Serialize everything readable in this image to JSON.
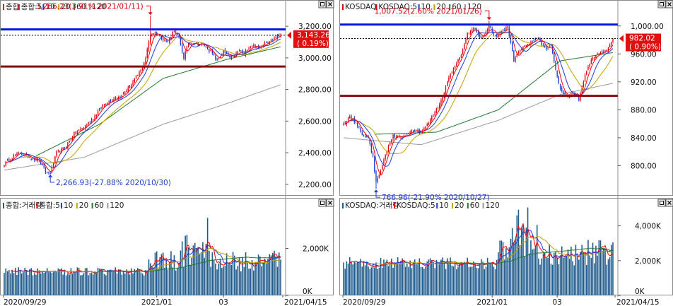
{
  "colors": {
    "candle_up": "#e0000e",
    "candle_down": "#1c3dd8",
    "ma5": "#ff0000",
    "ma10": "#1c3dd8",
    "ma20": "#c8a000",
    "ma60": "#1f7a2e",
    "ma120": "#9a9a9a",
    "hline_blue": "#0a16e8",
    "hline_red": "#8a0a0a",
    "volume_bar": "#1f5b8c",
    "price_tag": "#e01010",
    "axis_text": "#111111"
  },
  "panels": [
    {
      "id": "kospi",
      "price_legend": [
        {
          "text": "종합",
          "color": "#e0000e"
        },
        {
          "text": "종합:5",
          "color": "#e0000e"
        },
        {
          "text": "10",
          "color": "#1c3dd8"
        },
        {
          "text": "20",
          "color": "#c8a000"
        },
        {
          "text": "60",
          "color": "#1f7a2e"
        },
        {
          "text": "120",
          "color": "#9a9a9a"
        }
      ],
      "volume_legend": [
        {
          "text": "종합:거래량",
          "color": "#1f5b8c"
        },
        {
          "text": "종합:5",
          "color": "#e0000e"
        },
        {
          "text": "10",
          "color": "#1c3dd8"
        },
        {
          "text": "20",
          "color": "#c8a000"
        },
        {
          "text": "60",
          "color": "#1f7a2e"
        },
        {
          "text": "120",
          "color": "#9a9a9a"
        }
      ],
      "high_annotation": "3,266.23(3.91% 2021/01/11)",
      "low_annotation": "2,266.93(-27.88% 2020/10/30)",
      "current_price": "3,143.26",
      "current_change": "( 0.19%)",
      "price_ticks": [
        "3,200.00",
        "3,000.00",
        "2,800.00",
        "2,600.00",
        "2,400.00",
        "2,200.00"
      ],
      "volume_ticks": [
        "2,000K",
        "0K"
      ],
      "date_ticks": [
        "2020/09/29",
        "2021/01",
        "03",
        "2021/04/15"
      ]
    },
    {
      "id": "kosdaq",
      "price_legend": [
        {
          "text": "KOSDAQ",
          "color": "#e0000e"
        },
        {
          "text": "KOSDAQ:5",
          "color": "#e0000e"
        },
        {
          "text": "10",
          "color": "#1c3dd8"
        },
        {
          "text": "20",
          "color": "#c8a000"
        },
        {
          "text": "60",
          "color": "#1f7a2e"
        },
        {
          "text": "120",
          "color": "#9a9a9a"
        }
      ],
      "volume_legend": [
        {
          "text": "KOSDAQ:거래량",
          "color": "#1f5b8c"
        },
        {
          "text": "KOSDAQ:5",
          "color": "#e0000e"
        },
        {
          "text": "10",
          "color": "#1c3dd8"
        },
        {
          "text": "20",
          "color": "#c8a000"
        },
        {
          "text": "60",
          "color": "#1f7a2e"
        },
        {
          "text": "120",
          "color": "#9a9a9a"
        }
      ],
      "high_annotation": "1,007.52(2.60% 2021/01/26)",
      "low_annotation": "766.96(-21.90% 2020/10/27)",
      "current_price": "982.02",
      "current_change": "( 0.90%)",
      "price_ticks": [
        "1,000.00",
        "960.00",
        "920.00",
        "880.00",
        "840.00",
        "800.00"
      ],
      "volume_ticks": [
        "4,000K",
        "2,000K",
        "0K"
      ],
      "date_ticks": [
        "2020/09/29",
        "2021/01",
        "03",
        "2021/04/15"
      ]
    }
  ],
  "chart_data": [
    {
      "type": "candlestick",
      "title": "종합",
      "x_range": [
        "2020/09/29",
        "2021/04/15"
      ],
      "ylim": [
        2150,
        3290
      ],
      "y_ticks": [
        3200,
        3000,
        2800,
        2600,
        2400,
        2200
      ],
      "high": {
        "value": 3266.23,
        "change_pct": 3.91,
        "date": "2021/01/11"
      },
      "low": {
        "value": 2266.93,
        "change_pct": -27.88,
        "date": "2020/10/30"
      },
      "last": {
        "value": 3143.26,
        "change_pct": 0.19
      },
      "horizontal_lines": [
        {
          "color": "blue",
          "value": 3180
        },
        {
          "color": "darkred",
          "value": 2945
        }
      ],
      "dashed_line_value": 3143.26,
      "close_anchors": [
        [
          0,
          2330
        ],
        [
          6,
          2380
        ],
        [
          10,
          2400
        ],
        [
          16,
          2370
        ],
        [
          22,
          2350
        ],
        [
          26,
          2280
        ],
        [
          29,
          2270
        ],
        [
          33,
          2400
        ],
        [
          38,
          2430
        ],
        [
          44,
          2520
        ],
        [
          50,
          2560
        ],
        [
          56,
          2620
        ],
        [
          62,
          2700
        ],
        [
          68,
          2740
        ],
        [
          74,
          2760
        ],
        [
          80,
          2830
        ],
        [
          86,
          2920
        ],
        [
          89,
          3000
        ],
        [
          92,
          3150
        ],
        [
          95,
          3160
        ],
        [
          99,
          3130
        ],
        [
          103,
          3100
        ],
        [
          107,
          3180
        ],
        [
          110,
          3120
        ],
        [
          113,
          3000
        ],
        [
          116,
          3100
        ],
        [
          121,
          3090
        ],
        [
          126,
          3080
        ],
        [
          130,
          3040
        ],
        [
          134,
          2980
        ],
        [
          138,
          3040
        ],
        [
          142,
          3000
        ],
        [
          145,
          3010
        ],
        [
          148,
          3050
        ],
        [
          151,
          3020
        ],
        [
          153,
          3060
        ],
        [
          156,
          3080
        ],
        [
          160,
          3060
        ],
        [
          164,
          3100
        ],
        [
          168,
          3110
        ],
        [
          172,
          3140
        ],
        [
          174,
          3143
        ]
      ],
      "ma60_anchors": [
        [
          20,
          2380
        ],
        [
          60,
          2580
        ],
        [
          100,
          2870
        ],
        [
          140,
          2990
        ],
        [
          174,
          3070
        ]
      ],
      "ma120_anchors": [
        [
          0,
          2290
        ],
        [
          50,
          2370
        ],
        [
          100,
          2580
        ],
        [
          140,
          2710
        ],
        [
          174,
          2830
        ]
      ],
      "volume_axis_max_k": 3700,
      "volume_ticks_k": [
        2000,
        0
      ]
    },
    {
      "type": "candlestick",
      "title": "KOSDAQ",
      "x_range": [
        "2020/09/29",
        "2021/04/15"
      ],
      "ylim": [
        762,
        1020
      ],
      "y_ticks": [
        1000,
        960,
        920,
        880,
        840,
        800
      ],
      "high": {
        "value": 1007.52,
        "change_pct": 2.6,
        "date": "2021/01/26"
      },
      "low": {
        "value": 766.96,
        "change_pct": -21.9,
        "date": "2020/10/27"
      },
      "last": {
        "value": 982.02,
        "change_pct": 0.9
      },
      "horizontal_lines": [
        {
          "color": "blue",
          "value": 1002
        },
        {
          "color": "darkred",
          "value": 900
        }
      ],
      "dashed_line_value": 982.02,
      "close_anchors": [
        [
          0,
          860
        ],
        [
          4,
          870
        ],
        [
          8,
          862
        ],
        [
          12,
          845
        ],
        [
          16,
          840
        ],
        [
          19,
          812
        ],
        [
          21,
          775
        ],
        [
          24,
          795
        ],
        [
          28,
          822
        ],
        [
          32,
          842
        ],
        [
          38,
          840
        ],
        [
          44,
          850
        ],
        [
          50,
          848
        ],
        [
          56,
          865
        ],
        [
          60,
          880
        ],
        [
          64,
          900
        ],
        [
          68,
          925
        ],
        [
          72,
          945
        ],
        [
          76,
          960
        ],
        [
          80,
          990
        ],
        [
          84,
          998
        ],
        [
          88,
          985
        ],
        [
          90,
          985
        ],
        [
          94,
          1000
        ],
        [
          98,
          985
        ],
        [
          102,
          990
        ],
        [
          106,
          1000
        ],
        [
          110,
          950
        ],
        [
          114,
          968
        ],
        [
          118,
          972
        ],
        [
          122,
          978
        ],
        [
          126,
          982
        ],
        [
          130,
          968
        ],
        [
          134,
          970
        ],
        [
          138,
          930
        ],
        [
          140,
          910
        ],
        [
          142,
          902
        ],
        [
          146,
          900
        ],
        [
          150,
          905
        ],
        [
          152,
          895
        ],
        [
          156,
          930
        ],
        [
          160,
          950
        ],
        [
          164,
          960
        ],
        [
          168,
          962
        ],
        [
          171,
          968
        ],
        [
          174,
          980
        ]
      ],
      "ma60_anchors": [
        [
          20,
          845
        ],
        [
          60,
          848
        ],
        [
          100,
          880
        ],
        [
          140,
          950
        ],
        [
          174,
          962
        ]
      ],
      "ma120_anchors": [
        [
          0,
          840
        ],
        [
          50,
          830
        ],
        [
          100,
          865
        ],
        [
          140,
          902
        ],
        [
          174,
          918
        ]
      ],
      "volume_axis_max_k": 5000,
      "volume_ticks_k": [
        4000,
        2000,
        0
      ]
    }
  ]
}
